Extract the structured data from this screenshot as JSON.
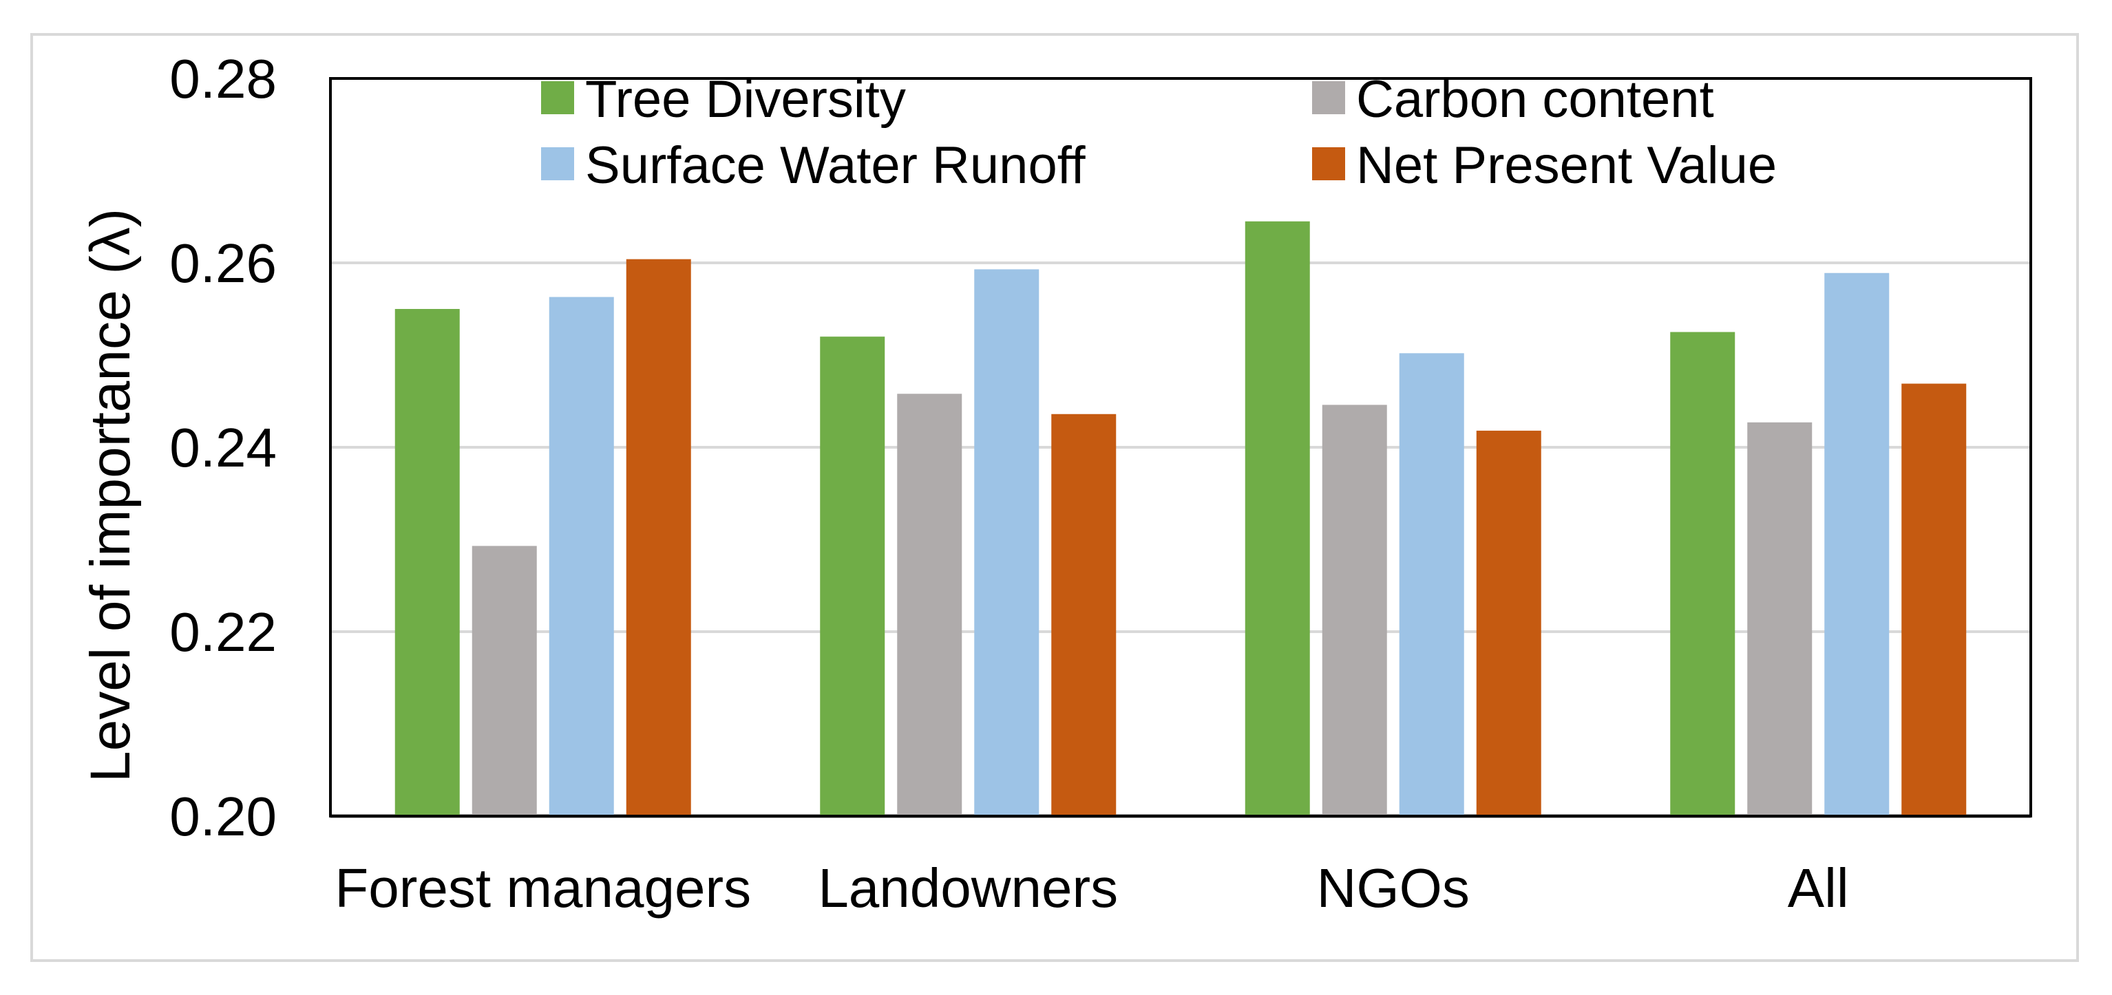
{
  "chart_data": {
    "type": "bar",
    "title": "",
    "xlabel": "",
    "ylabel": "Level of importance (λ)",
    "ylim": [
      0.2,
      0.28
    ],
    "yticks": [
      "0.20",
      "0.22",
      "0.24",
      "0.26",
      "0.28"
    ],
    "categories": [
      "Forest managers",
      "Landowners",
      "NGOs",
      "All"
    ],
    "series": [
      {
        "name": "Tree Diversity",
        "color": "#70ad47",
        "values": [
          0.255,
          0.252,
          0.2645,
          0.2525
        ]
      },
      {
        "name": "Carbon content",
        "color": "#afabab",
        "values": [
          0.2293,
          0.2458,
          0.2446,
          0.2427
        ]
      },
      {
        "name": "Surface Water Runoff",
        "color": "#9dc3e6",
        "values": [
          0.2563,
          0.2593,
          0.2502,
          0.2589
        ]
      },
      {
        "name": "Net Present Value",
        "color": "#c55a11",
        "values": [
          0.2604,
          0.2436,
          0.2418,
          0.2469
        ]
      }
    ],
    "legend_position": "top",
    "grid": true
  }
}
